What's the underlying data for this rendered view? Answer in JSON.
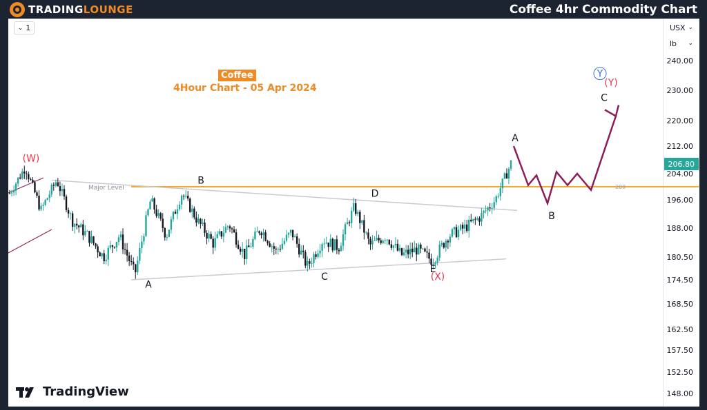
{
  "header": {
    "brand_part1": "TRADING",
    "brand_part2": "LOUNGE",
    "title": "Coffee 4hr Commodity Chart"
  },
  "toolbar": {
    "interval_value": "1",
    "currency": "USX",
    "unit": "lb"
  },
  "annotation": {
    "title": "Coffee",
    "subtitle": "4Hour Chart - 05 Apr 2024"
  },
  "footer": {
    "brand": "TradingView"
  },
  "colors": {
    "bull": "#26a69a",
    "bear": "#131722",
    "orange": "#f5a623",
    "wave_path": "#8b1e5a",
    "red_label": "#e53950",
    "blue_label": "#3d6fe0"
  },
  "chart_data": {
    "type": "candlestick",
    "symbol": "Coffee",
    "timeframe": "4Hour",
    "y_axis_ticks": [
      240.0,
      230.0,
      220.0,
      212.0,
      204.0,
      196.0,
      188.0,
      180.5,
      174.5,
      168.5,
      162.5,
      157.5,
      152.5,
      148.0
    ],
    "ylim": [
      146.5,
      243.5
    ],
    "last_price": "206.80",
    "major_level": {
      "label": "Major Level",
      "value": 200,
      "value_label": "200"
    },
    "wave_labels": [
      {
        "text": "(W)",
        "price": 207.5,
        "color": "red"
      },
      {
        "text": "A",
        "price": 172.5,
        "color": "black"
      },
      {
        "text": "B",
        "price": 201.0,
        "color": "black"
      },
      {
        "text": "C",
        "price": 174.5,
        "color": "black"
      },
      {
        "text": "D",
        "price": 197.0,
        "color": "black"
      },
      {
        "text": "E",
        "price": 176.5,
        "color": "black"
      },
      {
        "text": "(X)",
        "price": 174.5,
        "color": "red"
      },
      {
        "text": "A",
        "price": 213.5,
        "color": "black"
      },
      {
        "text": "B",
        "price": 190.5,
        "color": "black"
      },
      {
        "text": "C",
        "price": 226.5,
        "color": "black"
      },
      {
        "text": "(Y)",
        "price": 231.5,
        "color": "red"
      },
      {
        "text": "Y",
        "price": 234.5,
        "color": "blue"
      }
    ],
    "projection_path_prices": [
      212.0,
      200.5,
      203.5,
      195.0,
      204.5,
      200.5,
      204.0,
      199.0,
      221.5
    ],
    "triangle_upper_line": [
      202.0,
      193.0
    ],
    "triangle_lower_line": [
      174.5,
      180.0
    ],
    "price_path_waypoints": [
      198.0,
      206.0,
      193.0,
      202.0,
      190.0,
      186.0,
      180.5,
      186.0,
      176.0,
      196.0,
      186.0,
      198.0,
      190.0,
      184.0,
      189.0,
      181.0,
      188.0,
      182.0,
      187.0,
      178.0,
      185.0,
      183.0,
      194.0,
      183.5,
      186.0,
      181.0,
      182.5,
      179.5,
      186.0,
      188.0,
      191.0,
      196.0,
      207.0
    ]
  }
}
